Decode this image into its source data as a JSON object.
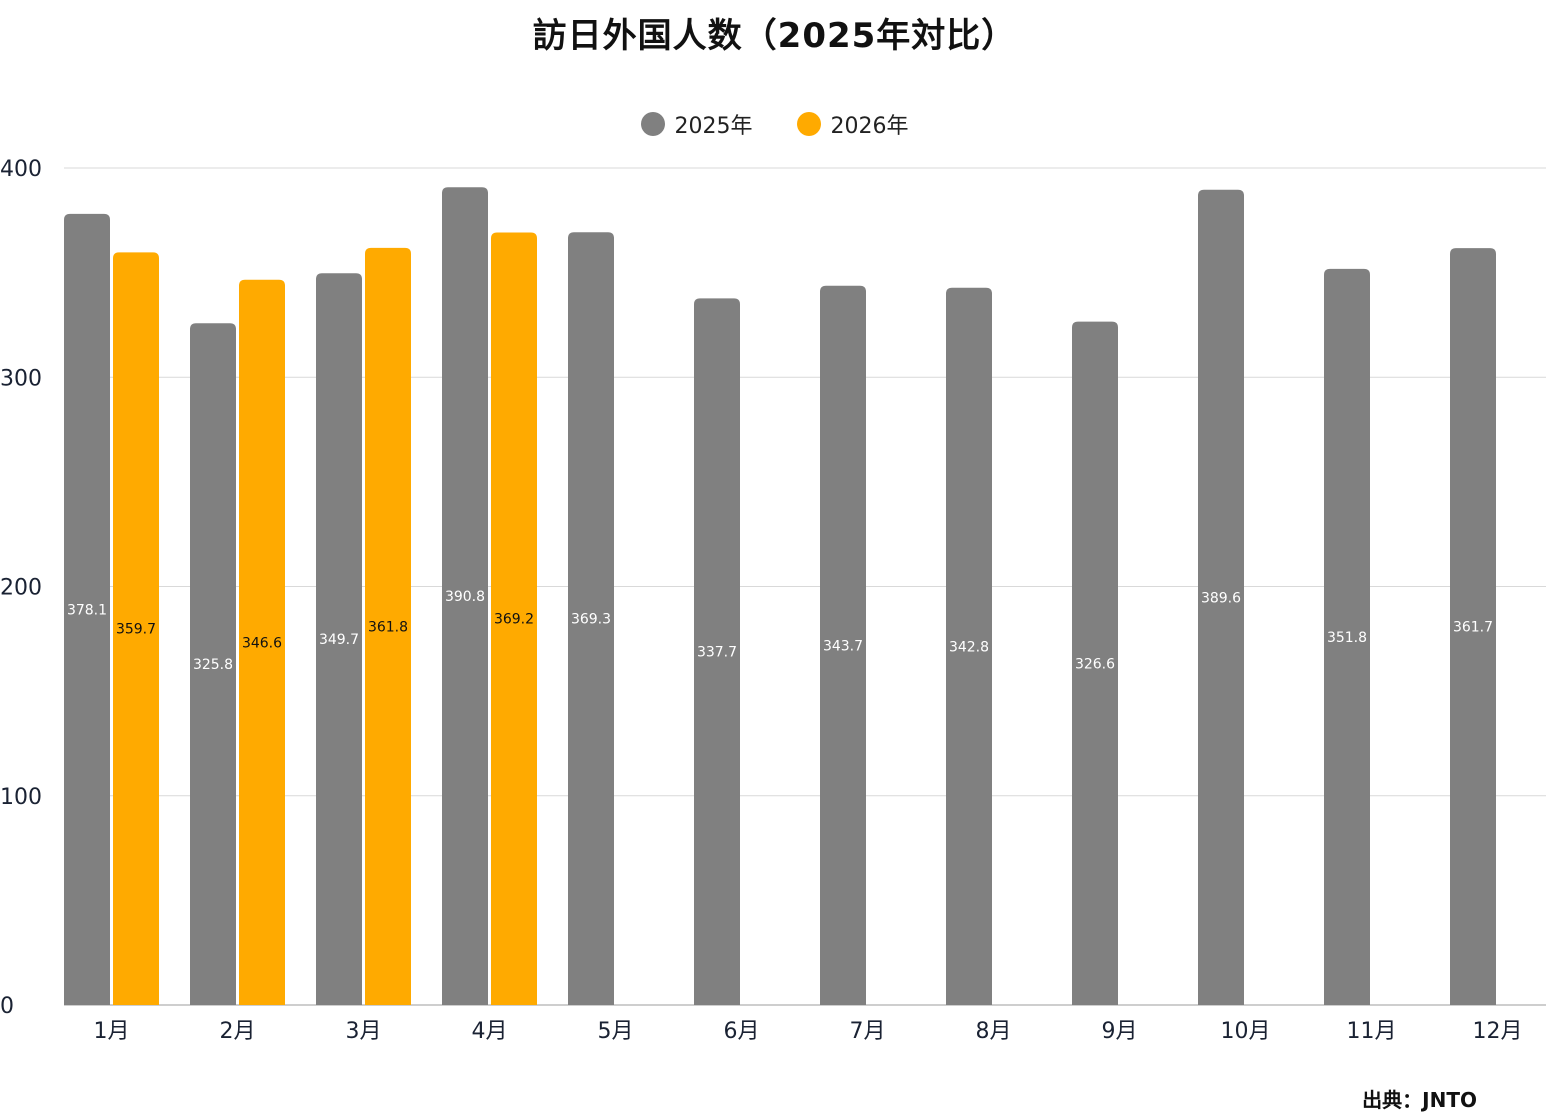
{
  "title": "訪日外国人数（2025年対比）",
  "source": "出典：JNTO",
  "colors": {
    "series_2025": "#808080",
    "series_2026": "#FFAA00",
    "grid": "#d9d9d9",
    "axis_text": "#1a2233"
  },
  "chart_data": {
    "type": "bar",
    "categories": [
      "1月",
      "2月",
      "3月",
      "4月",
      "5月",
      "6月",
      "7月",
      "8月",
      "9月",
      "10月",
      "11月",
      "12月"
    ],
    "series": [
      {
        "name": "2025年",
        "values": [
          378.1,
          325.8,
          349.7,
          390.8,
          369.3,
          337.7,
          343.7,
          342.8,
          326.6,
          389.6,
          351.8,
          361.7
        ]
      },
      {
        "name": "2026年",
        "values": [
          359.7,
          346.6,
          361.8,
          369.2,
          null,
          null,
          null,
          null,
          null,
          null,
          null,
          null
        ]
      }
    ],
    "yticks": [
      0,
      100,
      200,
      300,
      400
    ],
    "ylim": [
      0,
      400
    ],
    "grid": true,
    "legend_position": "top-center"
  }
}
